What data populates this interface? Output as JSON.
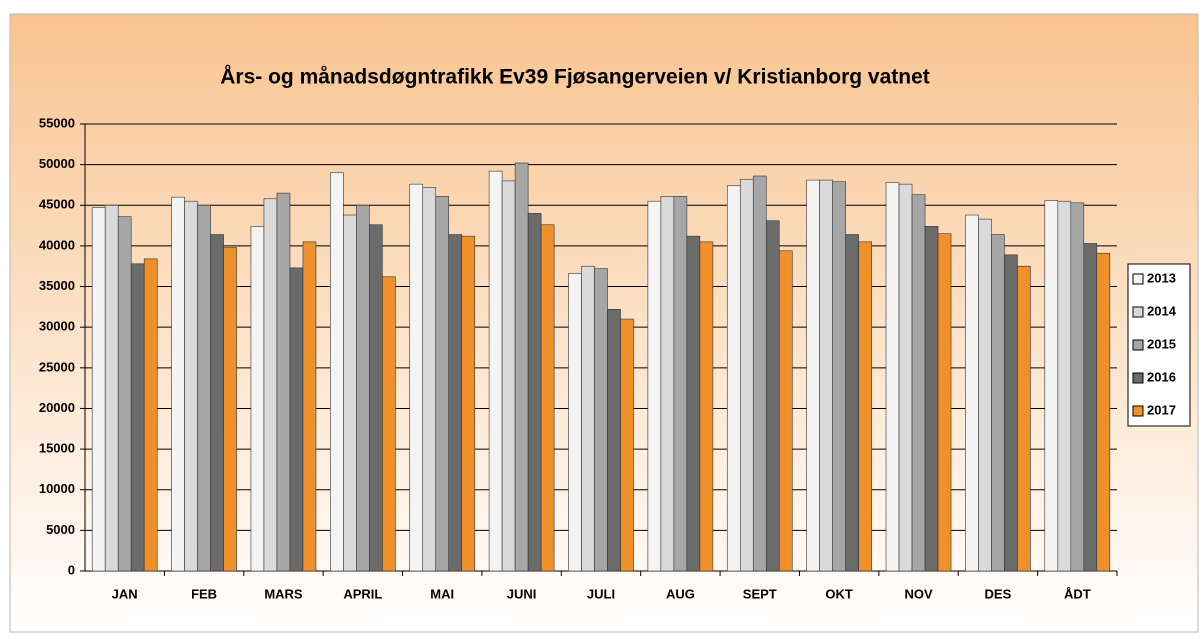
{
  "chart_data": {
    "type": "bar",
    "title": "Års- og månadsdøgntrafikk Ev39 Fjøsangerveien v/ Kristianborg vatnet",
    "categories": [
      "JAN",
      "FEB",
      "MARS",
      "APRIL",
      "MAI",
      "JUNI",
      "JULI",
      "AUG",
      "SEPT",
      "OKT",
      "NOV",
      "DES",
      "ÅDT"
    ],
    "series": [
      {
        "name": "2013",
        "color": "#f4f4f4",
        "values": [
          44700,
          46000,
          42400,
          49000,
          47600,
          49200,
          36600,
          45500,
          47400,
          48100,
          47800,
          43800,
          45600
        ]
      },
      {
        "name": "2014",
        "color": "#dadada",
        "values": [
          45000,
          45500,
          45800,
          43800,
          47200,
          48000,
          37500,
          46100,
          48200,
          48100,
          47600,
          43300,
          45500
        ]
      },
      {
        "name": "2015",
        "color": "#a6a6a6",
        "values": [
          43600,
          45000,
          46500,
          45000,
          46100,
          50200,
          37200,
          46100,
          48600,
          47900,
          46300,
          41400,
          45300
        ]
      },
      {
        "name": "2016",
        "color": "#6b6b6b",
        "values": [
          37800,
          41400,
          37300,
          42600,
          41400,
          44000,
          32200,
          41200,
          43100,
          41400,
          42400,
          38900,
          40300
        ]
      },
      {
        "name": "2017",
        "color": "#f0902a",
        "values": [
          38400,
          39800,
          40500,
          36200,
          41200,
          42600,
          31000,
          40500,
          39400,
          40500,
          41500,
          37500,
          39100
        ]
      }
    ],
    "ylim": [
      0,
      55000
    ],
    "yticks": [
      0,
      5000,
      10000,
      15000,
      20000,
      25000,
      30000,
      35000,
      40000,
      45000,
      50000,
      55000
    ],
    "grid": true,
    "legend": "right"
  }
}
